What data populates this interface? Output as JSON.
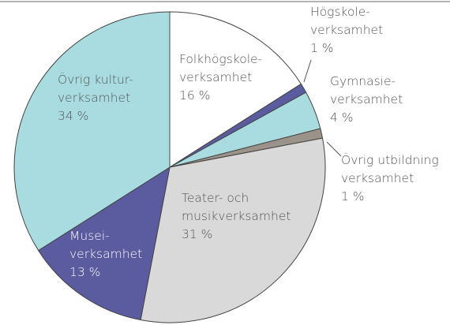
{
  "chart_data": {
    "type": "pie",
    "categories": [
      [
        "Folkhögskole-",
        "verksamhet"
      ],
      [
        "Högskole-",
        "verksamhet"
      ],
      [
        "Gymnasie-",
        "verksamhet"
      ],
      [
        "Övrig utbildning",
        "verksamhet"
      ],
      [
        "Teater- och",
        "musikverksamhet"
      ],
      [
        "Musei-",
        "verksamhet"
      ],
      [
        "Övrig kultur-",
        "verksamhet"
      ]
    ],
    "values": [
      16,
      1,
      4,
      1,
      31,
      13,
      34
    ],
    "value_labels": [
      "16 %",
      "1 %",
      "4 %",
      "1 %",
      "31 %",
      "13 %",
      "34 %"
    ],
    "colors": [
      "#ffffff",
      "#5b5ba0",
      "#a8dce1",
      "#9b9289",
      "#d9d9da",
      "#5b5ba0",
      "#a8dce1"
    ],
    "label_colors": [
      "#555555",
      "#555555",
      "#555555",
      "#555555",
      "#555555",
      "#ffffff",
      "#555555"
    ]
  }
}
